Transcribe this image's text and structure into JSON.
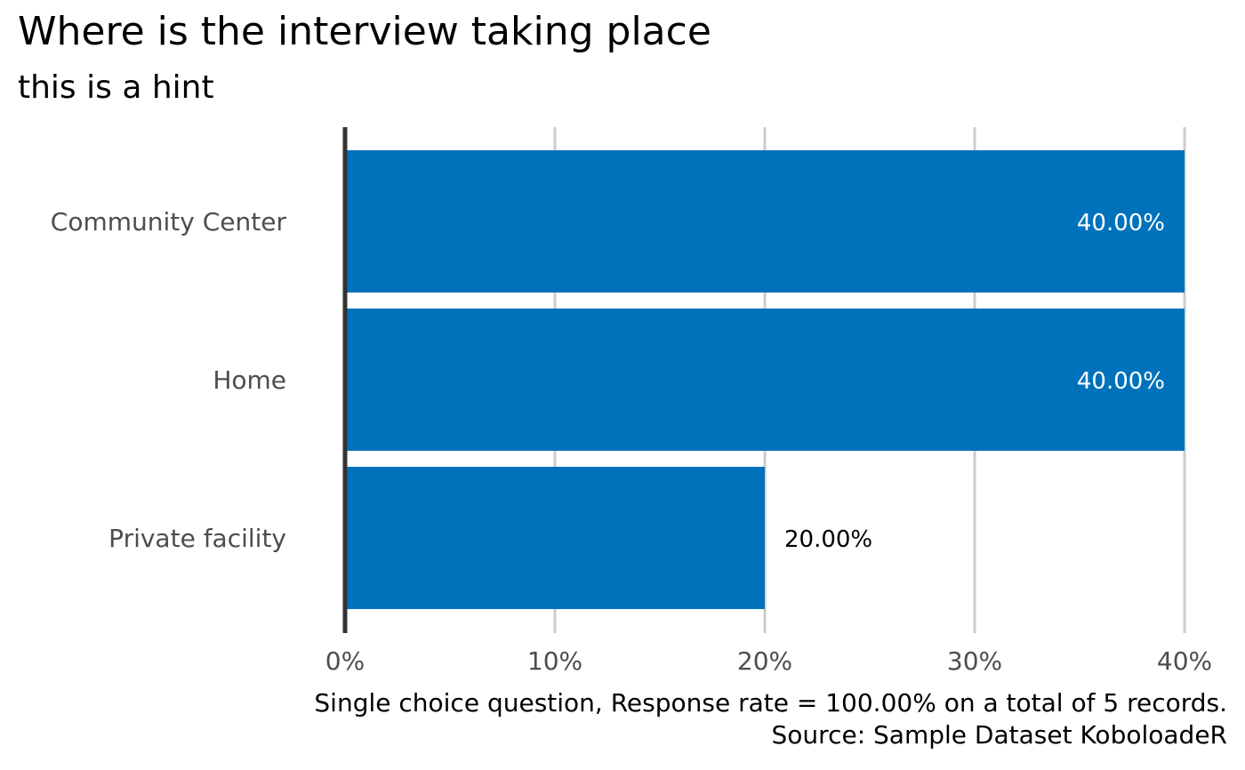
{
  "title": "Where is the interview taking place",
  "subtitle": "this is a hint",
  "caption": {
    "line1": "Single choice question, Response rate = 100.00% on a total of 5 records.",
    "line2": "Source: Sample Dataset KoboloadeR"
  },
  "colors": {
    "bar": "#0072BC",
    "grid": "#CCCCCC",
    "axis_line": "#333333",
    "axis_text": "#4D4D4D",
    "label_inside": "#FFFFFF",
    "label_outside": "#000000"
  },
  "chart_data": {
    "type": "bar",
    "orientation": "horizontal",
    "categories": [
      "Community Center",
      "Home",
      "Private facility"
    ],
    "values": [
      40,
      40,
      20
    ],
    "value_labels": [
      "40.00%",
      "40.00%",
      "20.00%"
    ],
    "x_ticks": [
      0,
      10,
      20,
      30,
      40
    ],
    "x_tick_labels": [
      "0%",
      "10%",
      "20%",
      "30%",
      "40%"
    ],
    "xlim": [
      0,
      40
    ],
    "grid": "vertical major",
    "legend": "none"
  }
}
